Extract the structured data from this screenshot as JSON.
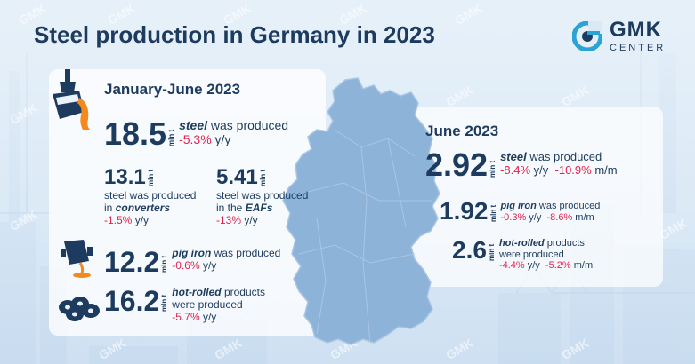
{
  "title": "Steel production in Germany in 2023",
  "logo": {
    "main": "GMK",
    "sub": "CENTER"
  },
  "watermark": "GMK",
  "colors": {
    "dark": "#1d3b5e",
    "accent": "#e0224f",
    "map": "#8db3d9",
    "orange": "#f28a1e"
  },
  "h1": {
    "period": "January-June 2023",
    "steel": {
      "value": "18.5",
      "unit": "mln t",
      "word": "steel",
      "rest": " was produced",
      "change": "-5.3%",
      "yy": " y/y"
    },
    "converters": {
      "value": "13.1",
      "unit": "mln t",
      "line1": "steel was produced",
      "line2a": "in ",
      "line2b": "converters",
      "change": "-1.5%",
      "yy": " y/y"
    },
    "eafs": {
      "value": "5.41",
      "unit": "mln t",
      "line1": "steel was produced",
      "line2a": "in the ",
      "line2b": "EAFs",
      "change": "-13%",
      "yy": " y/y"
    },
    "pig": {
      "value": "12.2",
      "unit": "mln t",
      "word": "pig iron",
      "rest": " was produced",
      "change": "-0.6%",
      "yy": " y/y"
    },
    "hot": {
      "value": "16.2",
      "unit": "mln t",
      "word": "hot-rolled",
      "rest": " products",
      "line2": "were produced",
      "change": "-5.7%",
      "yy": " y/y"
    }
  },
  "june": {
    "period": "June 2023",
    "steel": {
      "value": "2.92",
      "unit": "mln t",
      "word": "steel",
      "rest": " was produced",
      "c1": "-8.4%",
      "yy": " y/y",
      "c2": "-10.9%",
      "mm": " m/m"
    },
    "pig": {
      "value": "1.92",
      "unit": "mln t",
      "word": "pig iron",
      "rest": " was produced",
      "c1": "-0.3%",
      "yy": " y/y",
      "c2": "-8.6%",
      "mm": " m/m"
    },
    "hot": {
      "value": "2.6",
      "unit": "mln t",
      "word": "hot-rolled",
      "rest": " products",
      "line2": "were produced",
      "c1": "-4.4%",
      "yy": " y/y",
      "c2": "-5.2%",
      "mm": " m/m"
    }
  },
  "icons": [
    "ladle-icon",
    "converter-icon",
    "steel-coils-icon",
    "gmk-logo-icon",
    "germany-map"
  ]
}
